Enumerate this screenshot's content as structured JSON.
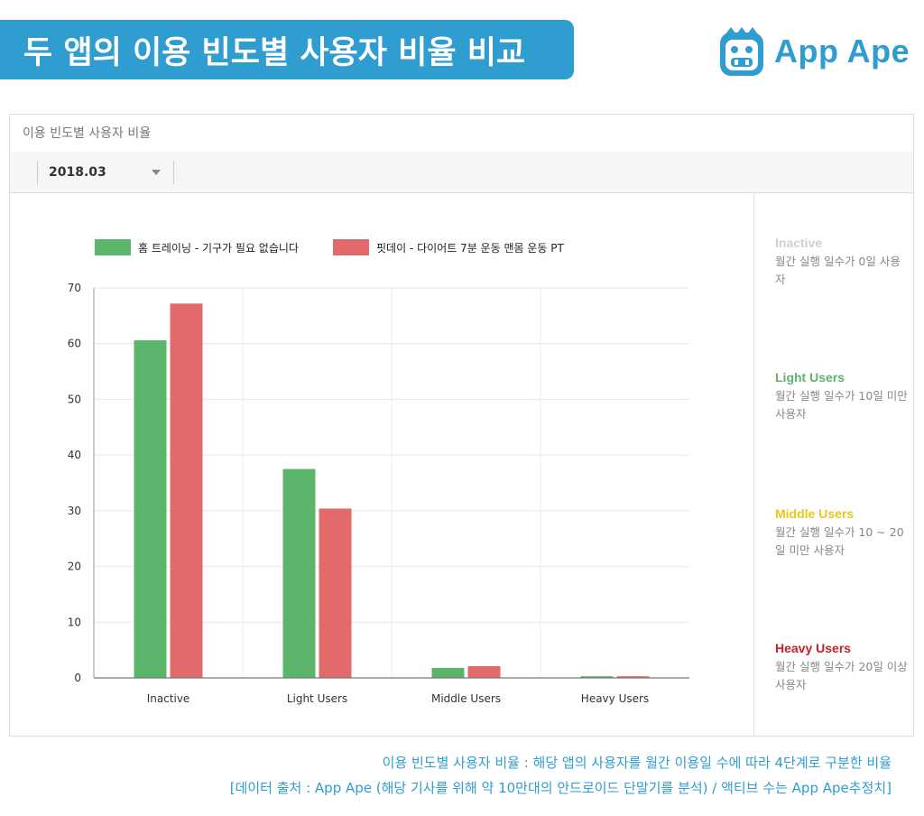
{
  "header": {
    "title": "두 앱의 이용 빈도별 사용자 비율 비교",
    "logo_text": "App Ape"
  },
  "panel": {
    "title": "이용 빈도별 사용자 비율",
    "date_value": "2018.03"
  },
  "colors": {
    "banner": "#2f9dcf",
    "series1": "#5bb66b",
    "series2": "#e36a6a",
    "inactive": "#cfcfcf",
    "light": "#5bb66b",
    "middle": "#e8c61e",
    "heavy": "#c8202a"
  },
  "chart_data": {
    "type": "bar",
    "categories": [
      "Inactive",
      "Light Users",
      "Middle Users",
      "Heavy Users"
    ],
    "series": [
      {
        "name": "홈 트레이닝 - 기구가 필요 없습니다",
        "values": [
          60.6,
          37.5,
          1.8,
          0.3
        ]
      },
      {
        "name": "핏데이 - 다이어트 7분 운동 맨몸 운동 PT",
        "values": [
          67.2,
          30.4,
          2.1,
          0.3
        ]
      }
    ],
    "ylim": [
      0,
      70
    ],
    "yticks": [
      0,
      10,
      20,
      30,
      40,
      50,
      60,
      70
    ],
    "title": "",
    "xlabel": "",
    "ylabel": "",
    "legend": "top-left",
    "grid": true
  },
  "segments": [
    {
      "title": "Inactive",
      "desc": "월간 실행 일수가 0일 사용자"
    },
    {
      "title": "Light Users",
      "desc": "월간 실행 일수가 10일 미만 사용자"
    },
    {
      "title": "Middle Users",
      "desc": "월간 실행 일수가 10 ~ 20일 미만 사용자"
    },
    {
      "title": "Heavy Users",
      "desc": "월간 실행 일수가 20일 이상 사용자"
    }
  ],
  "footer": {
    "line1": "이용 빈도별 사용자 비율 : 해당 앱의 사용자를 월간 이용일 수에 따라 4단계로 구분한 비율",
    "line2": "[데이터 출처 : App Ape (해당 기사를 위해 약 10만대의 안드로이드 단말기를 분석) / 액티브 수는 App Ape추정치]"
  }
}
